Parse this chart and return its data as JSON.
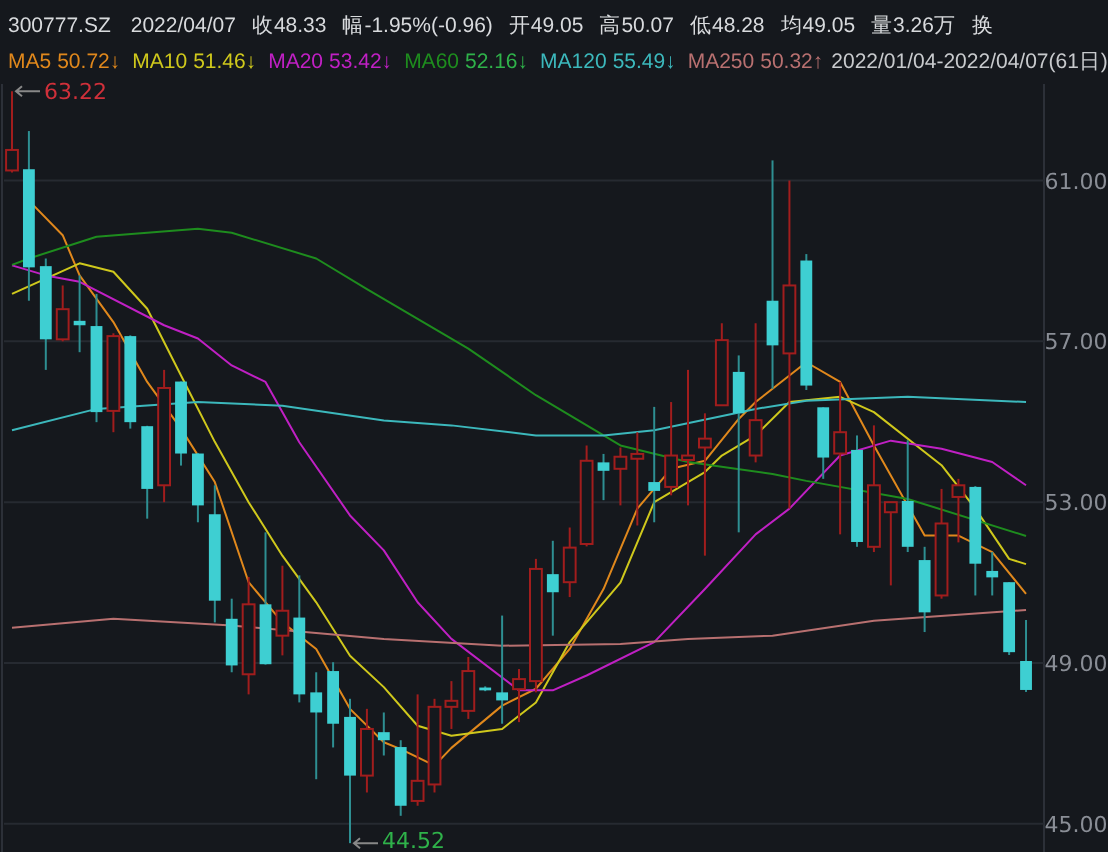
{
  "chart_data": {
    "type": "candlestick",
    "title": "300777.SZ",
    "categories": [
      null,
      null,
      null,
      null,
      null,
      null,
      null,
      null,
      null,
      null,
      null,
      null,
      null,
      null,
      null,
      null,
      null,
      null,
      null,
      null,
      null,
      null,
      null,
      null,
      null,
      null,
      null,
      null,
      null,
      null,
      null,
      null,
      null,
      null,
      null,
      null,
      null,
      null,
      null,
      null,
      null,
      null,
      null,
      null,
      null,
      null,
      null,
      null,
      null,
      null,
      null,
      null,
      null,
      null,
      null,
      null,
      null,
      null,
      null,
      null,
      null
    ],
    "ohlc": [
      [
        61.25,
        63.22,
        61.2,
        61.76
      ],
      [
        61.28,
        62.23,
        58.01,
        58.84
      ],
      [
        58.87,
        59.06,
        56.29,
        57.05
      ],
      [
        57.05,
        58.39,
        57.0,
        57.8
      ],
      [
        57.51,
        58.64,
        56.73,
        57.4
      ],
      [
        57.38,
        58.18,
        54.99,
        55.24
      ],
      [
        55.27,
        57.2,
        54.74,
        57.13
      ],
      [
        57.13,
        57.15,
        54.83,
        54.99
      ],
      [
        54.89,
        54.9,
        52.59,
        53.33
      ],
      [
        53.42,
        56.29,
        53.0,
        55.84
      ],
      [
        56.0,
        56.0,
        53.91,
        54.21
      ],
      [
        54.21,
        54.22,
        52.5,
        52.92
      ],
      [
        52.7,
        53.42,
        50.01,
        50.55
      ],
      [
        50.1,
        50.6,
        48.77,
        48.94
      ],
      [
        48.72,
        51.14,
        48.22,
        50.46
      ],
      [
        50.46,
        52.25,
        48.96,
        48.97
      ],
      [
        49.68,
        51.42,
        49.19,
        50.3
      ],
      [
        50.13,
        51.18,
        48.02,
        48.22
      ],
      [
        48.27,
        48.77,
        46.11,
        47.77
      ],
      [
        48.8,
        49.02,
        46.9,
        47.49
      ],
      [
        47.66,
        48.11,
        44.52,
        46.2
      ],
      [
        46.2,
        47.86,
        45.78,
        47.36
      ],
      [
        47.28,
        47.77,
        46.7,
        47.08
      ],
      [
        46.91,
        47.08,
        45.2,
        45.45
      ],
      [
        45.57,
        48.22,
        45.45,
        46.07
      ],
      [
        45.98,
        48.11,
        45.78,
        47.91
      ],
      [
        47.91,
        48.55,
        47.36,
        48.06
      ],
      [
        47.81,
        49.15,
        47.61,
        48.8
      ],
      [
        48.39,
        48.42,
        48.3,
        48.32
      ],
      [
        48.27,
        50.18,
        47.49,
        48.07
      ],
      [
        48.35,
        48.85,
        47.53,
        48.6
      ],
      [
        48.55,
        51.59,
        48.27,
        51.34
      ],
      [
        51.21,
        52.04,
        49.68,
        50.76
      ],
      [
        51.01,
        52.37,
        50.64,
        51.87
      ],
      [
        51.96,
        54.41,
        51.9,
        54.03
      ],
      [
        53.99,
        54.2,
        53.05,
        53.78
      ],
      [
        53.83,
        54.36,
        52.92,
        54.13
      ],
      [
        54.08,
        54.74,
        52.42,
        54.2
      ],
      [
        53.5,
        55.37,
        52.5,
        53.28
      ],
      [
        53.38,
        55.49,
        53.17,
        54.16
      ],
      [
        54.05,
        56.29,
        52.92,
        54.16
      ],
      [
        54.36,
        55.21,
        51.67,
        54.58
      ],
      [
        55.41,
        57.45,
        55.4,
        57.03
      ],
      [
        56.24,
        56.65,
        52.25,
        55.21
      ],
      [
        54.16,
        57.45,
        53.99,
        55.04
      ],
      [
        58.01,
        61.5,
        55.82,
        56.9
      ],
      [
        56.7,
        61.0,
        52.84,
        58.39
      ],
      [
        59.01,
        59.17,
        55.79,
        55.9
      ],
      [
        55.36,
        55.36,
        53.58,
        54.11
      ],
      [
        54.21,
        55.99,
        52.2,
        54.74
      ],
      [
        54.3,
        54.66,
        51.89,
        52.01
      ],
      [
        51.89,
        54.91,
        51.76,
        53.42
      ],
      [
        52.75,
        53.0,
        50.93,
        53.0
      ],
      [
        53.03,
        54.54,
        51.76,
        51.89
      ],
      [
        51.56,
        51.89,
        49.77,
        50.26
      ],
      [
        50.68,
        53.33,
        50.6,
        52.47
      ],
      [
        53.13,
        53.58,
        52.0,
        53.42
      ],
      [
        53.38,
        53.4,
        50.68,
        51.47
      ],
      [
        51.29,
        51.76,
        50.68,
        51.13
      ],
      [
        51.01,
        51.01,
        49.2,
        49.27
      ],
      [
        49.05,
        50.07,
        48.28,
        48.33
      ]
    ],
    "series": [
      {
        "name": "MA5",
        "type": "line",
        "color": "#e0881c",
        "values": [
          null,
          60.5,
          null,
          59.64,
          58.64,
          null,
          57.48,
          null,
          55.99,
          null,
          54.83,
          null,
          53.5,
          null,
          51.01,
          null,
          50.01,
          null,
          49.35,
          null,
          47.86,
          null,
          47.03,
          46.86,
          null,
          46.45,
          46.89,
          null,
          null,
          47.94,
          null,
          48.36,
          null,
          49.35,
          null,
          50.84,
          null,
          52.84,
          null,
          53.83,
          null,
          54.03,
          null,
          55.07,
          55.49,
          null,
          null,
          56.48,
          null,
          55.99,
          null,
          54.41,
          null,
          null,
          52.17,
          null,
          52.17,
          null,
          51.76,
          null,
          50.72
        ]
      },
      {
        "name": "MA10",
        "type": "line",
        "color": "#cfc81c",
        "values": [
          58.18,
          null,
          58.56,
          null,
          58.94,
          null,
          58.73,
          null,
          57.81,
          null,
          56.15,
          null,
          54.5,
          null,
          53.0,
          null,
          51.67,
          null,
          50.51,
          null,
          49.18,
          null,
          48.4,
          null,
          47.44,
          null,
          47.19,
          null,
          null,
          47.36,
          null,
          48.02,
          null,
          49.52,
          null,
          null,
          51.0,
          null,
          53.0,
          null,
          null,
          53.75,
          54.16,
          null,
          54.66,
          null,
          55.49,
          null,
          null,
          55.62,
          null,
          55.24,
          null,
          null,
          null,
          53.92,
          null,
          52.84,
          null,
          51.59,
          51.46
        ]
      },
      {
        "name": "MA20",
        "type": "line",
        "color": "#c020c4",
        "values": [
          58.89,
          null,
          58.64,
          null,
          58.48,
          null,
          null,
          null,
          null,
          57.4,
          null,
          57.07,
          null,
          56.4,
          null,
          55.99,
          null,
          54.49,
          null,
          null,
          52.67,
          null,
          51.8,
          null,
          50.51,
          null,
          49.6,
          null,
          null,
          null,
          48.32,
          null,
          48.32,
          null,
          48.69,
          null,
          null,
          null,
          49.52,
          null,
          null,
          50.84,
          null,
          null,
          52.2,
          null,
          52.84,
          null,
          null,
          54.16,
          null,
          null,
          54.53,
          null,
          null,
          54.33,
          null,
          null,
          54.0,
          null,
          53.42
        ]
      },
      {
        "name": "MA60",
        "type": "line",
        "color": "#1e8c1e",
        "values": [
          58.9,
          59.06,
          null,
          null,
          null,
          59.6,
          null,
          null,
          null,
          null,
          null,
          59.8,
          null,
          59.7,
          null,
          null,
          null,
          null,
          59.06,
          null,
          null,
          58.3,
          null,
          null,
          null,
          null,
          null,
          56.82,
          null,
          null,
          null,
          55.66,
          null,
          null,
          null,
          null,
          54.41,
          null,
          null,
          null,
          54.0,
          null,
          null,
          null,
          null,
          53.7,
          null,
          53.53,
          null,
          null,
          null,
          null,
          null,
          53.08,
          null,
          null,
          null,
          null,
          null,
          null,
          52.16
        ]
      },
      {
        "name": "MA120",
        "type": "line",
        "color": "#3cb8bc",
        "values": [
          54.79,
          null,
          null,
          null,
          null,
          55.32,
          null,
          null,
          null,
          null,
          null,
          55.49,
          null,
          null,
          null,
          null,
          55.4,
          null,
          null,
          null,
          null,
          null,
          55.03,
          null,
          null,
          null,
          54.91,
          null,
          null,
          null,
          null,
          54.66,
          null,
          null,
          null,
          54.66,
          null,
          null,
          54.79,
          null,
          null,
          null,
          null,
          null,
          55.32,
          null,
          null,
          55.52,
          null,
          null,
          null,
          null,
          null,
          55.62,
          null,
          null,
          null,
          null,
          null,
          null,
          55.49
        ]
      },
      {
        "name": "MA250",
        "type": "line",
        "color": "#b87070",
        "values": [
          49.88,
          null,
          null,
          null,
          null,
          null,
          50.1,
          null,
          null,
          null,
          null,
          null,
          null,
          49.93,
          null,
          null,
          null,
          null,
          null,
          null,
          null,
          null,
          49.6,
          null,
          null,
          null,
          null,
          null,
          null,
          49.43,
          null,
          null,
          null,
          null,
          null,
          null,
          49.47,
          null,
          null,
          null,
          49.6,
          null,
          null,
          null,
          null,
          49.68,
          null,
          null,
          null,
          null,
          null,
          50.05,
          null,
          null,
          null,
          null,
          null,
          null,
          null,
          null,
          50.32
        ]
      }
    ],
    "ylim": [
      44.3,
      63.4
    ],
    "yticks": [
      {
        "value": 45,
        "label": "45.00"
      },
      {
        "value": 49,
        "label": "49.00"
      },
      {
        "value": 53,
        "label": "53.00"
      },
      {
        "value": 57,
        "label": "57.00"
      },
      {
        "value": 61,
        "label": "61.00"
      }
    ],
    "grid": "y",
    "legend": "top",
    "annotations": [
      "2022/04/07",
      "收48.33",
      "幅-1.95%(-0.96)",
      "开49.05",
      "高50.07",
      "低48.28",
      "均49.05",
      "量3.26万",
      "换",
      "50.72↓",
      "51.46↓",
      "53.42↓",
      "52.16↓",
      "55.49↓",
      "50.32↑",
      "2022/01/04-2022/04/07(61日)",
      "63.22",
      "44.52"
    ]
  }
}
